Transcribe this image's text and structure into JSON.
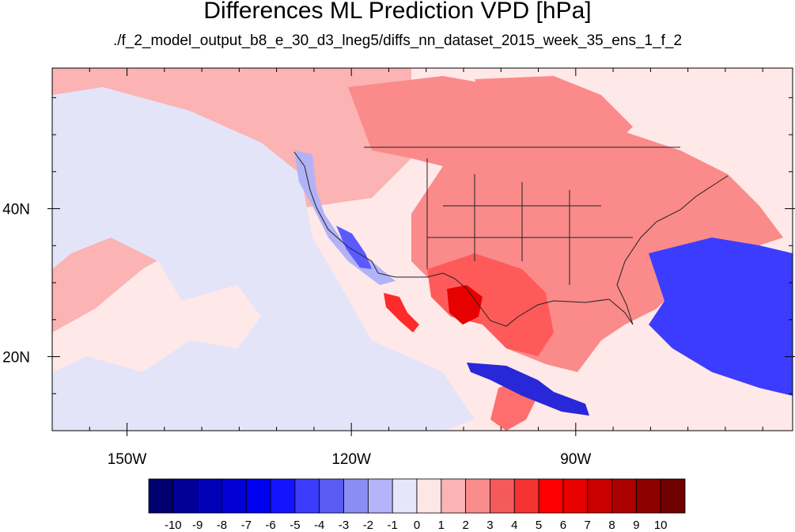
{
  "title": "Differences ML Prediction VPD [hPa]",
  "subtitle": "./f_2_model_output_b8_e_30_d3_lneg5/diffs_nn_dataset_2015_week_35_ens_1_f_2",
  "map": {
    "projection": "cylindrical equidistant",
    "lon_range": [
      -160,
      -61
    ],
    "lat_range": [
      10,
      59
    ],
    "lon_ticks": [
      {
        "value": -150,
        "label": "150W"
      },
      {
        "value": -120,
        "label": "120W"
      },
      {
        "value": -90,
        "label": "90W"
      }
    ],
    "lat_ticks": [
      {
        "value": 40,
        "label": "40N"
      },
      {
        "value": 20,
        "label": "20N"
      }
    ],
    "background_fill": "#ffe8e8",
    "regions": [
      {
        "name": "north-pacific-low-positive",
        "fill": "#fbb3b3",
        "level": 1
      },
      {
        "name": "west-coast-negative",
        "fill": "#b2b2f7",
        "level": -2
      },
      {
        "name": "baja-negative",
        "fill": "#5a5aff",
        "level": -4
      },
      {
        "name": "gulf-of-california-positive",
        "fill": "#ff2a2a",
        "level": 6
      },
      {
        "name": "mexico-texas-positive",
        "fill": "#ff5a5a",
        "level": 4
      },
      {
        "name": "texas-core-positive",
        "fill": "#e60000",
        "level": 7
      },
      {
        "name": "great-plains-positive",
        "fill": "#fb8a8a",
        "level": 3
      },
      {
        "name": "canada-positive",
        "fill": "#fb8a8a",
        "level": 3
      },
      {
        "name": "atlantic-negative",
        "fill": "#3c3cff",
        "level": -6
      },
      {
        "name": "caribbean-negative",
        "fill": "#2828d8",
        "level": -7
      },
      {
        "name": "tropical-pacific-low-negative",
        "fill": "#e4e4f8",
        "level": -1
      },
      {
        "name": "central-america-positive",
        "fill": "#ff6e6e",
        "level": 4
      }
    ]
  },
  "colorbar": {
    "labels": [
      "-10",
      "-9",
      "-8",
      "-7",
      "-6",
      "-5",
      "-4",
      "-3",
      "-2",
      "-1",
      "0",
      "1",
      "2",
      "3",
      "4",
      "5",
      "6",
      "7",
      "8",
      "9",
      "10"
    ],
    "colors": [
      "#00006e",
      "#000096",
      "#0000b4",
      "#0000d2",
      "#0000f0",
      "#1414ff",
      "#3c3cff",
      "#5a5af5",
      "#8c8cf5",
      "#b4b4fa",
      "#e6e6fa",
      "#ffe6e6",
      "#fab4b4",
      "#fa8c8c",
      "#f55a5a",
      "#f53232",
      "#ff0000",
      "#e60000",
      "#c80000",
      "#aa0000",
      "#8c0000",
      "#6e0000"
    ]
  }
}
